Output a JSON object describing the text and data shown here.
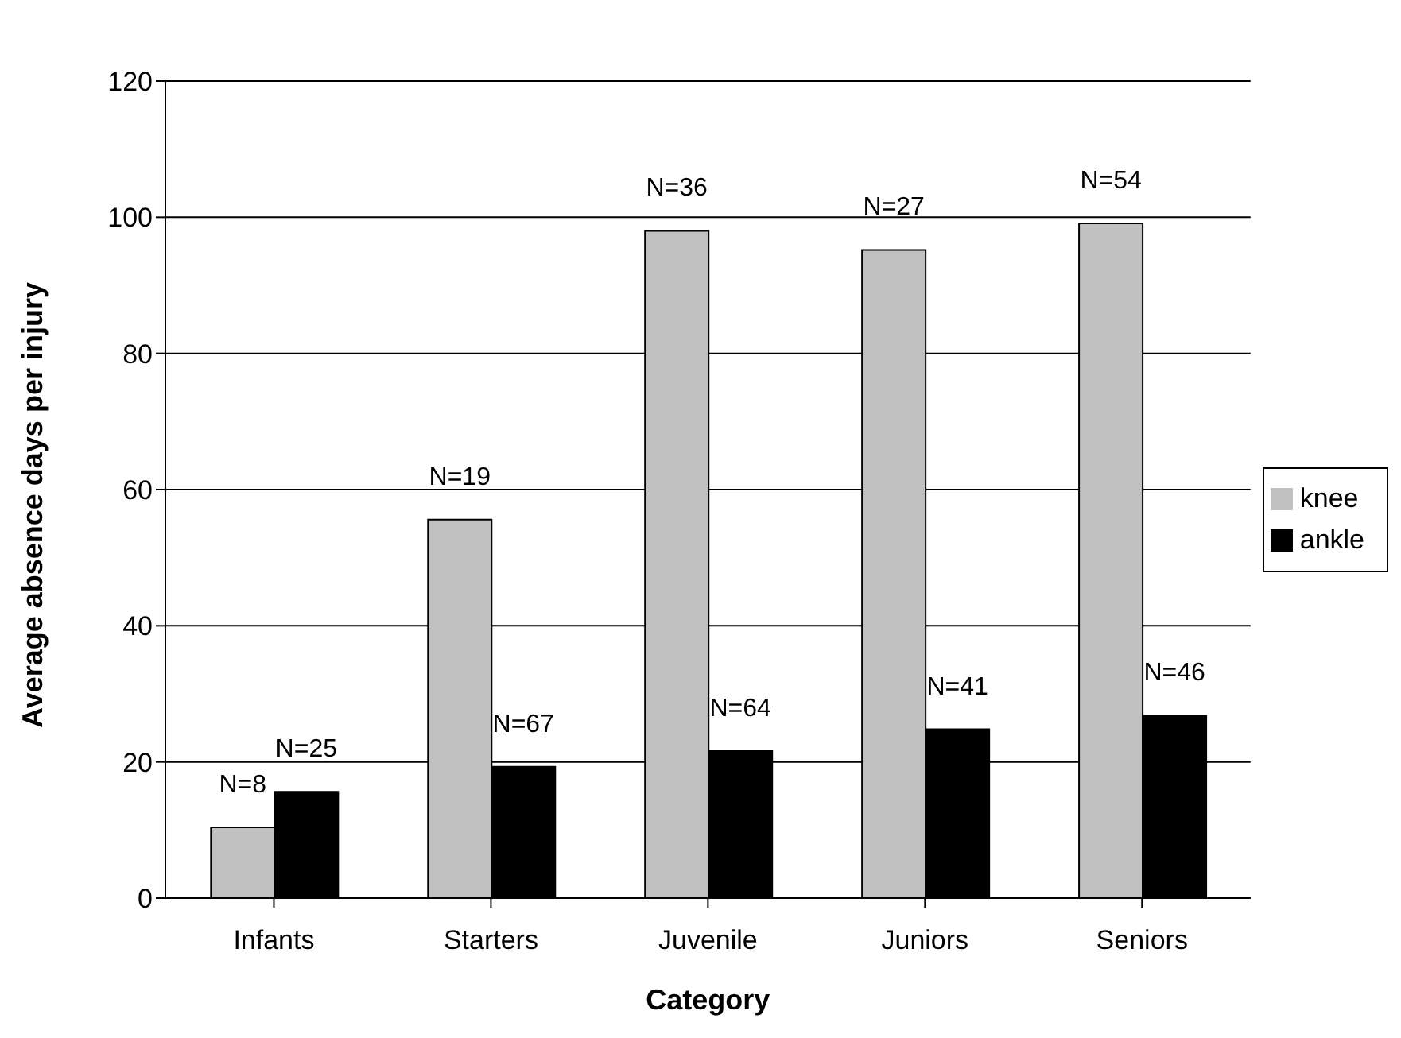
{
  "chart_data": {
    "type": "bar",
    "xlabel": "Category",
    "ylabel": "Average absence days per injury",
    "categories": [
      "Infants",
      "Starters",
      "Juvenile",
      "Juniors",
      "Seniors"
    ],
    "series": [
      {
        "name": "knee",
        "color": "#c0c0c0",
        "values": [
          10.4,
          55.6,
          98.0,
          95.2,
          99.1
        ]
      },
      {
        "name": "ankle",
        "color": "#000000",
        "values": [
          15.6,
          19.3,
          21.6,
          24.8,
          26.8
        ]
      }
    ],
    "annotations": [
      {
        "text": "N=8",
        "x": "Infants",
        "y": 10.4
      },
      {
        "text": "N=25",
        "x": "Infants",
        "y": 15.6
      },
      {
        "text": "N=19",
        "x": "Starters",
        "y": 55.6
      },
      {
        "text": "N=67",
        "x": "Starters",
        "y": 19.3
      },
      {
        "text": "N=36",
        "x": "Juvenile",
        "y": 98.0
      },
      {
        "text": "N=64",
        "x": "Juvenile",
        "y": 21.6
      },
      {
        "text": "N=27",
        "x": "Juniors",
        "y": 95.2
      },
      {
        "text": "N=41",
        "x": "Juniors",
        "y": 24.8
      },
      {
        "text": "N=54",
        "x": "Seniors",
        "y": 99.1
      },
      {
        "text": "N=46",
        "x": "Seniors",
        "y": 26.8
      }
    ],
    "ylim": [
      0,
      120
    ],
    "yticks": [
      0,
      20,
      40,
      60,
      80,
      100,
      120
    ],
    "grid": "y",
    "legend": "right"
  }
}
